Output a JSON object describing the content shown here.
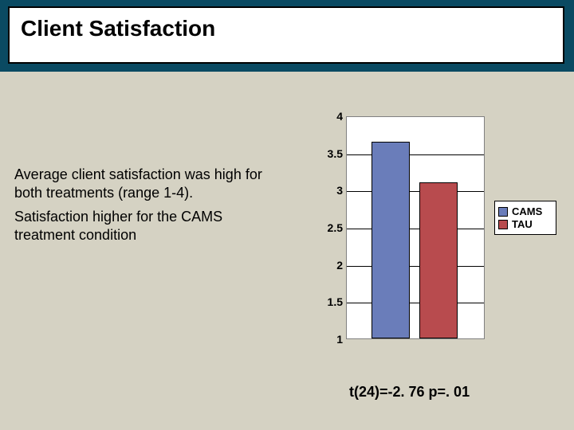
{
  "title": "Client Satisfaction",
  "description": {
    "line1": "Average client satisfaction was high for both treatments (range 1-4).",
    "line2": "Satisfaction higher for the CAMS treatment condition"
  },
  "chart": {
    "type": "bar",
    "ylim": [
      1,
      4
    ],
    "ytick_step": 0.5,
    "ytick_labels": [
      "1",
      "1.5",
      "2",
      "2.5",
      "3",
      "3.5",
      "4"
    ],
    "background_color": "#ffffff",
    "grid_color": "#000000",
    "border_color": "#808080",
    "bars": [
      {
        "name": "CAMS",
        "value": 3.65,
        "color": "#6a7dba",
        "x_pct": 18,
        "width_pct": 28
      },
      {
        "name": "TAU",
        "value": 3.1,
        "color": "#b84b4e",
        "x_pct": 53,
        "width_pct": 28
      }
    ],
    "legend": [
      {
        "label": "CAMS",
        "color": "#6a7dba"
      },
      {
        "label": "TAU",
        "color": "#b84b4e"
      }
    ]
  },
  "stats": "t(24)=-2. 76  p=. 01"
}
